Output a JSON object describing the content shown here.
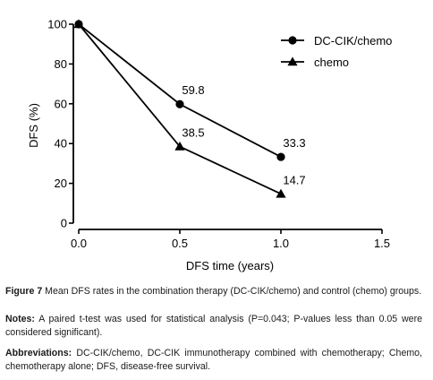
{
  "chart_data": {
    "type": "line",
    "xlabel": "DFS time (years)",
    "ylabel": "DFS (%)",
    "xlim": [
      0,
      1.5
    ],
    "ylim": [
      0,
      100
    ],
    "x_ticks": [
      "0.0",
      "0.5",
      "1.0",
      "1.5"
    ],
    "y_ticks": [
      "0",
      "20",
      "40",
      "60",
      "80",
      "100"
    ],
    "grid": false,
    "legend_position": "top-right",
    "series": [
      {
        "name": "DC-CIK/chemo",
        "marker": "circle",
        "x": [
          0,
          0.5,
          1.0
        ],
        "y": [
          100,
          59.8,
          33.3
        ],
        "labels": [
          "",
          "59.8",
          "33.3"
        ]
      },
      {
        "name": "chemo",
        "marker": "triangle",
        "x": [
          0,
          0.5,
          1.0
        ],
        "y": [
          100,
          38.5,
          14.7
        ],
        "labels": [
          "",
          "38.5",
          "14.7"
        ]
      }
    ]
  },
  "caption": {
    "figure_label": "Figure 7",
    "figure_text": " Mean DFS rates in the combination therapy (DC-CIK/chemo) and control (chemo) groups.",
    "notes_label": "Notes:",
    "notes_text": " A paired t-test was used for statistical analysis (P=0.043; P-values less than 0.05 were considered significant).",
    "abbrev_label": "Abbreviations:",
    "abbrev_text": " DC-CIK/chemo, DC-CIK immunotherapy combined with chemotherapy; Chemo, chemotherapy alone; DFS, disease-free survival."
  }
}
